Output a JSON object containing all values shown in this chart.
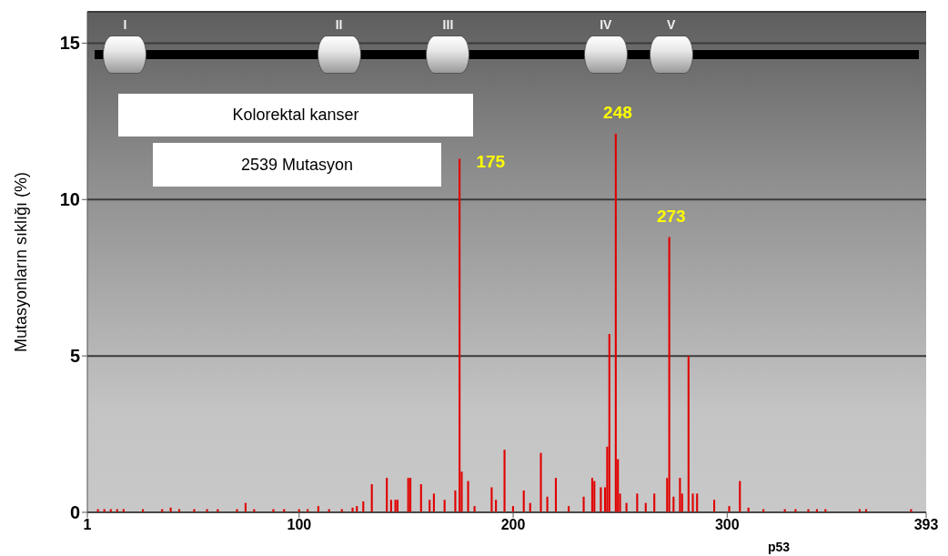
{
  "chart_data": {
    "type": "bar",
    "xlabel": "p53",
    "ylabel": "Mutasyonların sıklığı (%)",
    "color": "#e00000",
    "x": [
      6,
      9,
      12,
      15,
      18,
      27,
      36,
      40,
      44,
      51,
      57,
      62,
      71,
      75,
      79,
      88,
      93,
      100,
      104,
      109,
      114,
      120,
      125,
      127,
      130,
      134,
      141,
      143,
      145,
      146,
      151,
      152,
      157,
      161,
      163,
      168,
      173,
      175,
      176,
      179,
      182,
      190,
      192,
      196,
      200,
      205,
      208,
      213,
      216,
      220,
      226,
      233,
      237,
      238,
      241,
      243,
      244,
      245,
      248,
      249,
      250,
      253,
      258,
      262,
      266,
      272,
      273,
      275,
      278,
      279,
      282,
      284,
      286,
      294,
      301,
      306,
      310,
      317,
      327,
      332,
      338,
      342,
      346,
      362,
      365,
      386
    ],
    "values": [
      0.1,
      0.1,
      0.1,
      0.1,
      0.1,
      0.1,
      0.1,
      0.15,
      0.1,
      0.1,
      0.1,
      0.1,
      0.1,
      0.3,
      0.1,
      0.1,
      0.1,
      0.1,
      0.1,
      0.2,
      0.1,
      0.1,
      0.15,
      0.2,
      0.35,
      0.9,
      1.1,
      0.4,
      0.4,
      0.4,
      1.1,
      1.1,
      0.9,
      0.4,
      0.6,
      0.4,
      0.7,
      11.3,
      1.3,
      1.0,
      0.2,
      0.8,
      0.4,
      2.0,
      0.2,
      0.7,
      0.3,
      1.9,
      0.5,
      1.1,
      0.2,
      0.5,
      1.1,
      1.0,
      0.8,
      0.8,
      2.1,
      5.7,
      12.1,
      1.7,
      0.6,
      0.3,
      0.6,
      0.3,
      0.6,
      1.1,
      8.8,
      0.5,
      1.1,
      0.6,
      5.0,
      0.6,
      0.6,
      0.4,
      0.2,
      1.0,
      0.15,
      0.1,
      0.1,
      0.1,
      0.1,
      0.1,
      0.1,
      0.1,
      0.1,
      0.1
    ],
    "xlim": [
      1,
      393
    ],
    "xticks": [
      1,
      100,
      200,
      300,
      393
    ],
    "ylim": [
      0,
      16
    ],
    "yticks": [
      0,
      5,
      10,
      15
    ],
    "grid": "y",
    "annotations": [
      "Kolorektal kanser",
      "2539 Mutasyon",
      {
        "text": "175",
        "x": 175,
        "y": 11.3
      },
      {
        "text": "248",
        "x": 248,
        "y": 12.1
      },
      {
        "text": "273",
        "x": 273,
        "y": 8.8
      },
      "I",
      "II",
      "III",
      "IV",
      "V"
    ]
  }
}
